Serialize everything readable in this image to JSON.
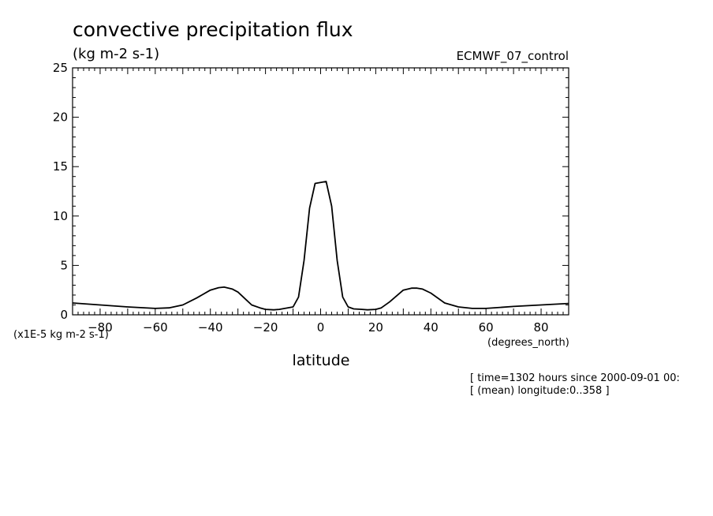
{
  "chart_data": {
    "type": "line",
    "title": "convective precipitation flux",
    "units": "(kg m-2 s-1)",
    "dataset": "ECMWF_07_control",
    "ylabel_scale": "(x1E-5 kg m-2 s-1)",
    "xlabel": "latitude",
    "xunits": "(degrees_north)",
    "xlim": [
      -90,
      90
    ],
    "ylim": [
      0,
      25
    ],
    "xticks": [
      -80,
      -60,
      -40,
      -20,
      0,
      20,
      40,
      60,
      80
    ],
    "yticks": [
      0,
      5,
      10,
      15,
      20,
      25
    ],
    "grid": false,
    "series": [
      {
        "x": [
          -90,
          -80,
          -70,
          -60,
          -55,
          -50,
          -45,
          -40,
          -37,
          -35,
          -32,
          -30,
          -25,
          -22,
          -20,
          -17,
          -15,
          -12,
          -10,
          -8,
          -6,
          -4,
          -2,
          0,
          2,
          4,
          6,
          8,
          10,
          12,
          15,
          17,
          20,
          22,
          25,
          30,
          33,
          35,
          37,
          40,
          45,
          50,
          55,
          60,
          70,
          80,
          90
        ],
        "y": [
          1.2,
          1.0,
          0.8,
          0.65,
          0.7,
          1.0,
          1.7,
          2.5,
          2.75,
          2.8,
          2.6,
          2.3,
          1.0,
          0.7,
          0.55,
          0.5,
          0.55,
          0.7,
          0.8,
          1.8,
          5.5,
          10.8,
          13.3,
          13.4,
          13.5,
          11.0,
          5.5,
          1.8,
          0.8,
          0.6,
          0.55,
          0.5,
          0.55,
          0.7,
          1.3,
          2.5,
          2.7,
          2.7,
          2.6,
          2.2,
          1.2,
          0.8,
          0.65,
          0.65,
          0.85,
          1.0,
          1.15
        ]
      }
    ]
  },
  "footer": {
    "line1": "[ time=1302 hours since 2000-09-01 00:",
    "line2": "[ (mean) longitude:0..358 ]"
  }
}
